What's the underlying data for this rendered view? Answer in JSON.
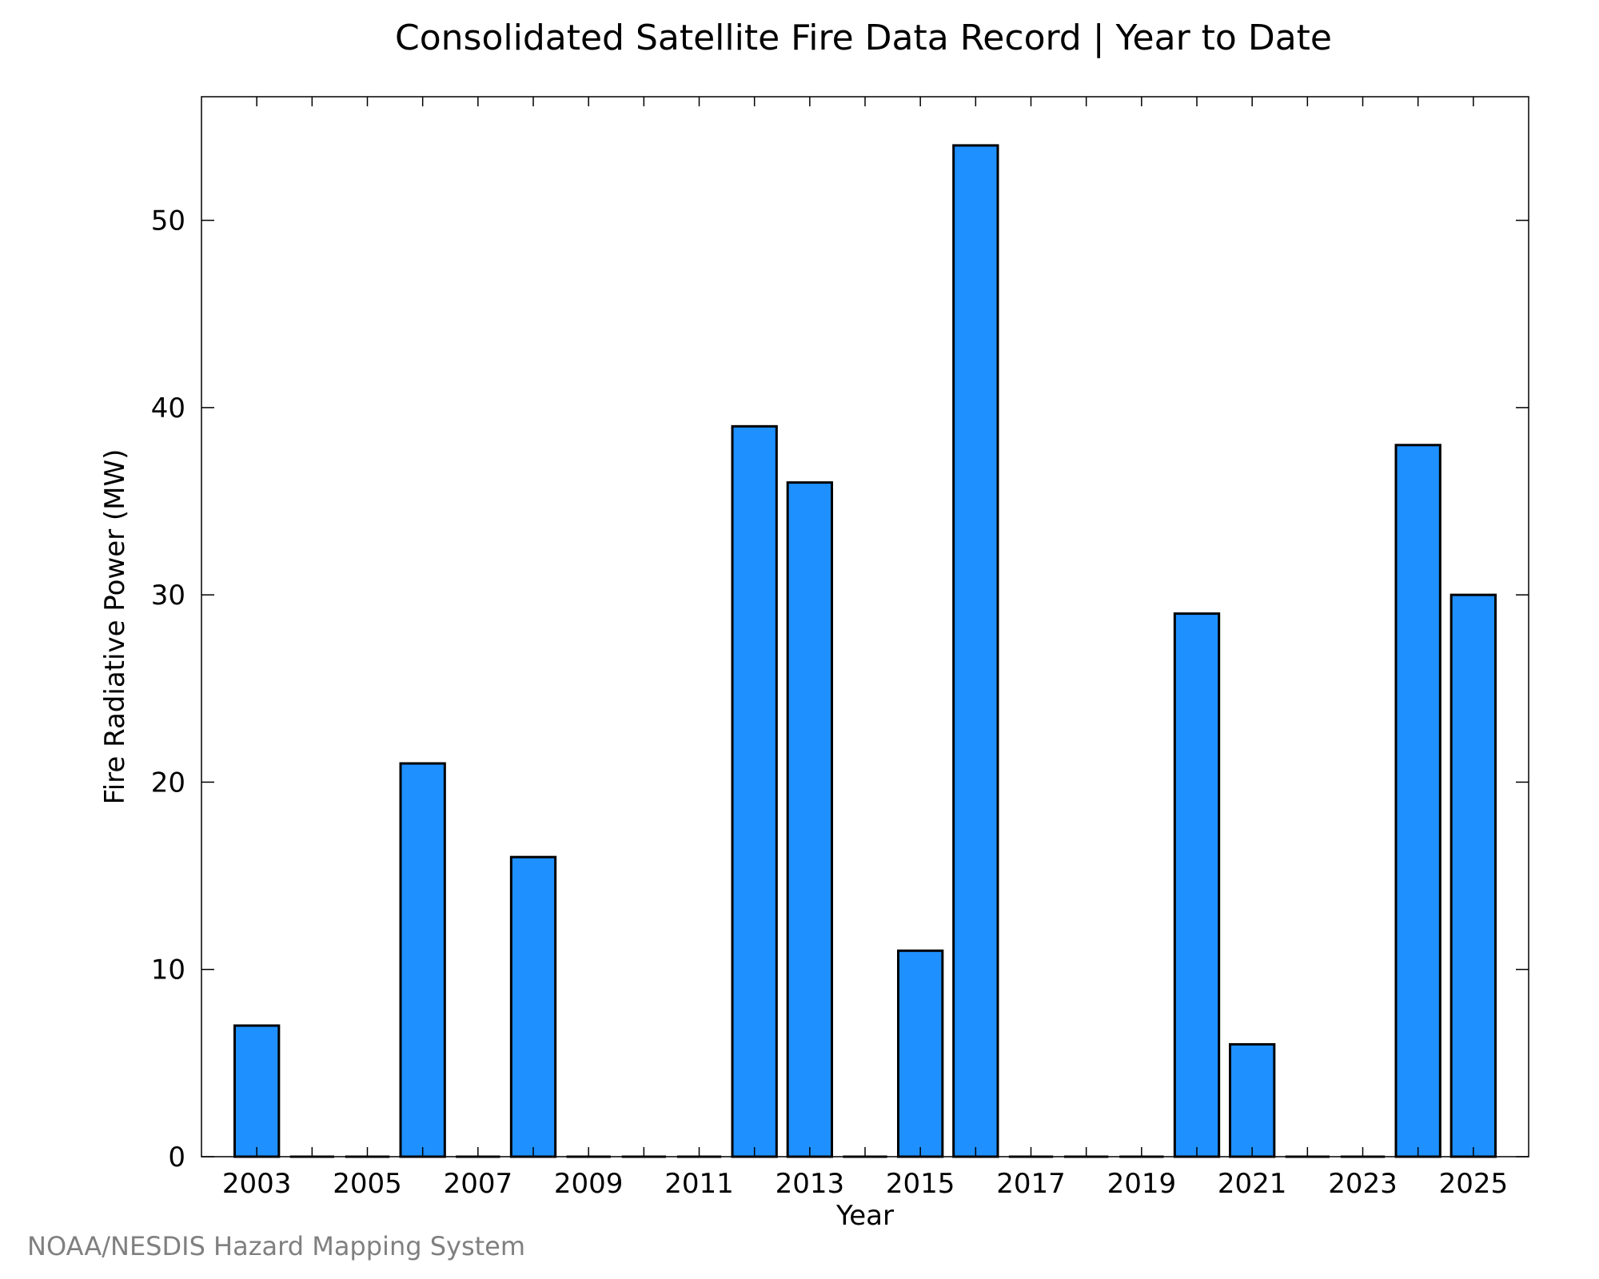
{
  "chart_data": {
    "type": "bar",
    "title": "Consolidated Satellite Fire Data Record | Year to Date",
    "xlabel": "Year",
    "ylabel": "Fire Radiative Power (MW)",
    "categories": [
      "2003",
      "2004",
      "2005",
      "2006",
      "2007",
      "2008",
      "2009",
      "2010",
      "2011",
      "2012",
      "2013",
      "2014",
      "2015",
      "2016",
      "2017",
      "2018",
      "2019",
      "2020",
      "2021",
      "2022",
      "2023",
      "2024",
      "2025"
    ],
    "values": [
      7,
      0,
      0,
      21,
      0,
      16,
      0,
      0,
      0,
      39,
      36,
      0,
      11,
      54,
      0,
      0,
      0,
      29,
      6,
      0,
      0,
      38,
      30
    ],
    "x_tick_labels": [
      "2003",
      "2005",
      "2007",
      "2009",
      "2011",
      "2013",
      "2015",
      "2017",
      "2019",
      "2021",
      "2023",
      "2025"
    ],
    "y_ticks": [
      0,
      10,
      20,
      30,
      40,
      50
    ],
    "ylim": [
      0,
      56.6
    ],
    "grid": false,
    "legend": "none",
    "bar_color": "#1e90ff",
    "edge_color": "#000000"
  },
  "footer": {
    "credit": "NOAA/NESDIS Hazard Mapping System"
  }
}
